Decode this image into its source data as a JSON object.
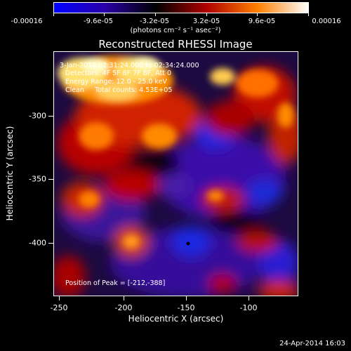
{
  "colorbar": {
    "tick_labels": [
      "-0.00016",
      "-9.6e-05",
      "-3.2e-05",
      "3.2e-05",
      "9.6e-05",
      "0.00016"
    ],
    "units": "(photons cm⁻² s⁻¹ asec⁻²)",
    "colors": [
      "#0000ff",
      "#2a00a8",
      "#000000",
      "#b00000",
      "#ff8000",
      "#ffffff"
    ]
  },
  "title": "Reconstructed RHESSI Image",
  "annotations": {
    "time": "3-Jan-2012 02:31:24.000 to 02:34:24.000",
    "detectors": "Detectors: 4F 5F 6F 7F 8F, Att 0",
    "energy": "Energy Range: 12.0 - 25.0 keV",
    "method": "Clean     Total counts: 4.53E+05",
    "peak": "Position of Peak = [-212,-388]"
  },
  "axes": {
    "xlabel": "Heliocentric X (arcsec)",
    "ylabel": "Heliocentric Y (arcsec)",
    "xticks": [
      "-250",
      "-200",
      "-150",
      "-100"
    ],
    "yticks": [
      "-300",
      "-350",
      "-400"
    ]
  },
  "datestamp": "24-Apr-2014 16:03"
}
